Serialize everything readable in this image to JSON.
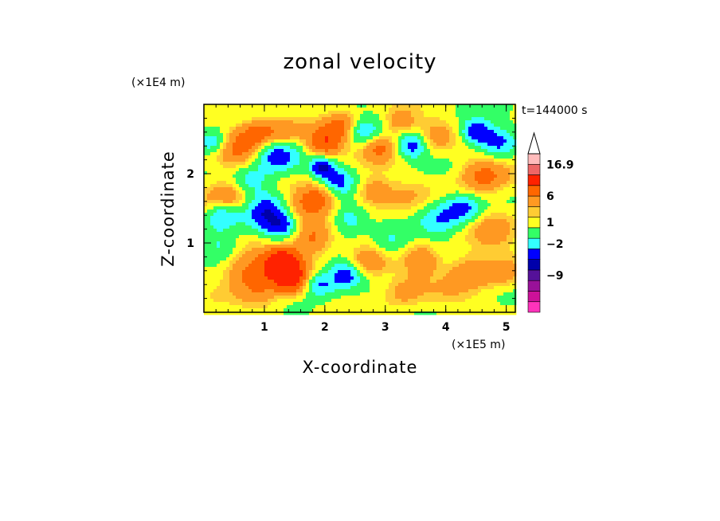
{
  "chart_data": {
    "type": "heatmap",
    "title": "zonal velocity",
    "xlabel": "X-coordinate",
    "ylabel": "Z-coordinate",
    "x_scale_label": "(×1E5 m)",
    "y_scale_label": "(×1E4 m)",
    "time_label": "t=144000 s",
    "xlim": [
      0,
      5.15
    ],
    "ylim": [
      0,
      3.0
    ],
    "x_ticks": [
      1,
      2,
      3,
      4,
      5
    ],
    "y_ticks": [
      1,
      2
    ],
    "x_tick_labels": [
      "1",
      "2",
      "3",
      "4",
      "5"
    ],
    "y_tick_labels": [
      "1",
      "2"
    ],
    "colorbar": {
      "levels": [
        {
          "color": "#ff33bb"
        },
        {
          "color": "#cc1199"
        },
        {
          "color": "#991199"
        },
        {
          "color": "#551199"
        },
        {
          "color": "#0000aa"
        },
        {
          "color": "#0000ff"
        },
        {
          "color": "#33ffff"
        },
        {
          "color": "#33ff66"
        },
        {
          "color": "#ffff22"
        },
        {
          "color": "#ffcc33"
        },
        {
          "color": "#ff9922"
        },
        {
          "color": "#ff6600"
        },
        {
          "color": "#ff2200"
        },
        {
          "color": "#ee6666"
        },
        {
          "color": "#ffbbbb"
        }
      ],
      "tick_labels": [
        {
          "text": "16.9",
          "level_edge": 14
        },
        {
          "text": "6",
          "level_edge": 11
        },
        {
          "text": "1",
          "level_edge": 8.5
        },
        {
          "text": "−2",
          "level_edge": 6.5
        },
        {
          "text": "−9",
          "level_edge": 3.5
        }
      ],
      "extend": "max"
    },
    "field_anomalies": [
      {
        "x": 0.15,
        "z": 2.45,
        "v": -5,
        "r": 0.18
      },
      {
        "x": 0.55,
        "z": 2.35,
        "v": 4,
        "r": 0.3
      },
      {
        "x": 0.9,
        "z": 2.6,
        "v": 5,
        "r": 0.22
      },
      {
        "x": 1.2,
        "z": 2.25,
        "v": -6,
        "r": 0.25
      },
      {
        "x": 1.35,
        "z": 2.6,
        "v": 4,
        "r": 0.2
      },
      {
        "x": 1.95,
        "z": 2.1,
        "v": -7,
        "r": 0.14
      },
      {
        "x": 2.0,
        "z": 2.45,
        "v": 7,
        "r": 0.22
      },
      {
        "x": 2.3,
        "z": 2.7,
        "v": 4,
        "r": 0.2
      },
      {
        "x": 2.65,
        "z": 2.6,
        "v": -5,
        "r": 0.2
      },
      {
        "x": 2.9,
        "z": 2.4,
        "v": 5,
        "r": 0.22
      },
      {
        "x": 3.25,
        "z": 2.75,
        "v": 4,
        "r": 0.18
      },
      {
        "x": 3.45,
        "z": 2.4,
        "v": -6,
        "r": 0.18
      },
      {
        "x": 3.8,
        "z": 2.55,
        "v": 3,
        "r": 0.25
      },
      {
        "x": 4.5,
        "z": 2.6,
        "v": -7,
        "r": 0.18
      },
      {
        "x": 4.85,
        "z": 2.45,
        "v": -5,
        "r": 0.2
      },
      {
        "x": 4.6,
        "z": 1.95,
        "v": 5,
        "r": 0.28
      },
      {
        "x": 0.45,
        "z": 1.65,
        "v": 5,
        "r": 0.3
      },
      {
        "x": 0.75,
        "z": 1.9,
        "v": -4,
        "r": 0.22
      },
      {
        "x": 1.0,
        "z": 1.45,
        "v": -6,
        "r": 0.3
      },
      {
        "x": 0.3,
        "z": 1.4,
        "v": -6,
        "r": 0.2
      },
      {
        "x": 1.3,
        "z": 1.25,
        "v": -5,
        "r": 0.2
      },
      {
        "x": 1.55,
        "z": 1.5,
        "v": 4,
        "r": 0.25
      },
      {
        "x": 1.9,
        "z": 1.65,
        "v": 5,
        "r": 0.2
      },
      {
        "x": 2.2,
        "z": 1.9,
        "v": -5,
        "r": 0.2
      },
      {
        "x": 2.4,
        "z": 1.35,
        "v": -4,
        "r": 0.2
      },
      {
        "x": 2.8,
        "z": 1.75,
        "v": 4,
        "r": 0.2
      },
      {
        "x": 3.3,
        "z": 1.6,
        "v": 2,
        "r": 0.3
      },
      {
        "x": 3.9,
        "z": 1.35,
        "v": -4,
        "r": 0.25
      },
      {
        "x": 4.3,
        "z": 1.5,
        "v": -5,
        "r": 0.22
      },
      {
        "x": 4.8,
        "z": 1.2,
        "v": 3,
        "r": 0.3
      },
      {
        "x": 1.3,
        "z": 0.7,
        "v": 12,
        "r": 0.22
      },
      {
        "x": 1.45,
        "z": 0.45,
        "v": 7,
        "r": 0.2
      },
      {
        "x": 1.8,
        "z": 1.05,
        "v": 5,
        "r": 0.25
      },
      {
        "x": 2.35,
        "z": 0.55,
        "v": -6,
        "r": 0.2
      },
      {
        "x": 1.9,
        "z": 0.4,
        "v": -5,
        "r": 0.18
      },
      {
        "x": 2.7,
        "z": 0.7,
        "v": 4,
        "r": 0.25
      },
      {
        "x": 0.7,
        "z": 0.6,
        "v": 5,
        "r": 0.3
      },
      {
        "x": 0.3,
        "z": 0.95,
        "v": -3,
        "r": 0.22
      },
      {
        "x": 0.95,
        "z": 0.25,
        "v": 3,
        "r": 0.25
      },
      {
        "x": 3.3,
        "z": 0.3,
        "v": 3,
        "r": 0.25
      },
      {
        "x": 3.1,
        "z": 1.0,
        "v": -3,
        "r": 0.22
      },
      {
        "x": 3.6,
        "z": 0.75,
        "v": 4,
        "r": 0.22
      },
      {
        "x": 4.4,
        "z": 0.6,
        "v": 4,
        "r": 0.28
      },
      {
        "x": 4.0,
        "z": 0.2,
        "v": 1,
        "r": 0.3
      },
      {
        "x": 4.95,
        "z": 0.55,
        "v": 3,
        "r": 0.22
      }
    ]
  }
}
